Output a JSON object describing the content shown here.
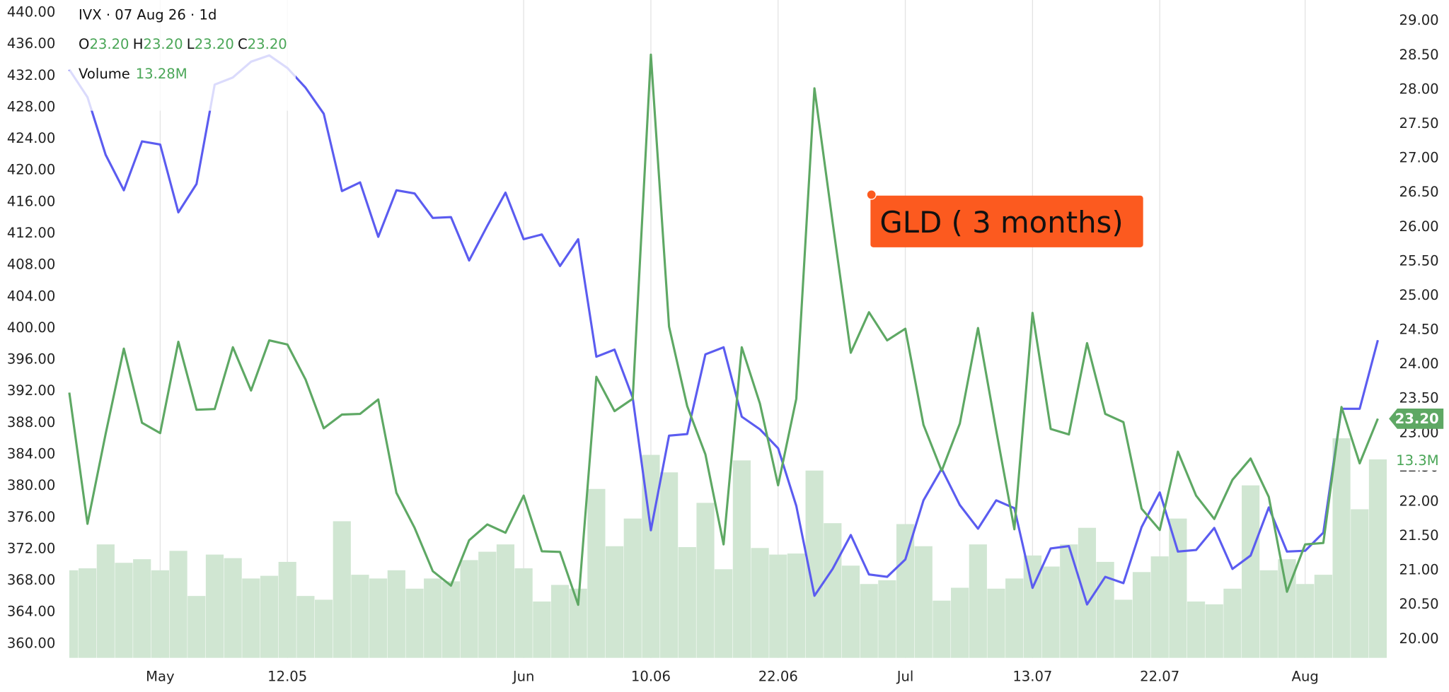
{
  "chart_data": {
    "type": "line",
    "header": {
      "title": "IVX · 07 Aug 26 · 1d",
      "ohlc": [
        [
          "O",
          "23.20"
        ],
        [
          "H",
          "23.20"
        ],
        [
          "L",
          "23.20"
        ],
        [
          "C",
          "23.20"
        ]
      ],
      "volume_label": "Volume",
      "volume_value": "13.28M"
    },
    "annotation": "GLD ( 3 months)",
    "x": [
      null,
      null,
      null,
      null,
      null,
      "May",
      null,
      null,
      null,
      null,
      null,
      null,
      "12.05",
      null,
      null,
      null,
      null,
      null,
      null,
      null,
      null,
      null,
      null,
      null,
      null,
      "Jun",
      null,
      null,
      null,
      null,
      null,
      null,
      "10.06",
      null,
      null,
      null,
      null,
      null,
      null,
      "22.06",
      null,
      null,
      null,
      null,
      null,
      null,
      "Jul",
      null,
      null,
      null,
      null,
      null,
      null,
      "13.07",
      null,
      null,
      null,
      null,
      null,
      null,
      "22.07",
      null,
      null,
      null,
      null,
      null,
      null,
      null,
      "Aug",
      null,
      null,
      null,
      null
    ],
    "series": [
      {
        "color": "#5b5cf0",
        "axis": "y",
        "values": [
          432.7,
          429.2,
          421.9,
          417.4,
          423.6,
          423.2,
          414.6,
          418.2,
          430.8,
          431.7,
          433.7,
          434.5,
          432.9,
          430.4,
          427.1,
          417.3,
          418.4,
          411.5,
          417.4,
          417.0,
          413.9,
          414.0,
          408.5,
          412.9,
          417.1,
          411.2,
          411.8,
          407.8,
          411.2,
          396.3,
          397.2,
          391.1,
          374.3,
          386.3,
          386.5,
          396.6,
          397.5,
          388.7,
          387.1,
          384.7,
          377.4,
          366.0,
          369.4,
          373.7,
          368.7,
          368.4,
          370.6,
          378.1,
          382.1,
          377.5,
          374.5,
          378.1,
          377.1,
          367.0,
          372.0,
          372.3,
          364.9,
          368.4,
          367.6,
          374.7,
          379.1,
          371.6,
          371.8,
          374.6,
          369.4,
          371.1,
          377.2,
          371.6,
          371.7,
          374.0,
          389.7,
          389.7,
          398.4
        ]
      },
      {
        "color": "#5ea864",
        "axis": "y2",
        "last_label": "23.20",
        "values": [
          23.58,
          21.67,
          22.98,
          24.22,
          23.14,
          22.99,
          24.32,
          23.33,
          23.34,
          24.24,
          23.61,
          24.34,
          24.28,
          23.77,
          23.06,
          23.26,
          23.27,
          23.48,
          22.12,
          21.61,
          20.98,
          20.77,
          21.43,
          21.66,
          21.54,
          22.08,
          21.27,
          21.26,
          20.49,
          23.81,
          23.31,
          23.49,
          28.5,
          24.54,
          23.38,
          22.68,
          21.37,
          24.24,
          23.42,
          22.23,
          23.49,
          28.01,
          26.06,
          24.16,
          24.75,
          24.34,
          24.51,
          23.11,
          22.44,
          23.13,
          24.52,
          23.03,
          21.59,
          24.74,
          23.05,
          22.97,
          24.3,
          23.27,
          23.15,
          21.89,
          21.58,
          22.72,
          22.08,
          21.74,
          22.31,
          22.62,
          22.06,
          20.68,
          21.37,
          21.39,
          23.37,
          22.55,
          23.2
        ]
      },
      {
        "type": "bar",
        "color": "#d0e6d2",
        "label_color": "#4aa657",
        "last_label": "13.3M",
        "values": [
          5.86,
          5.99,
          7.59,
          6.36,
          6.6,
          5.86,
          7.16,
          4.14,
          6.91,
          6.67,
          5.31,
          5.49,
          6.42,
          4.14,
          3.89,
          9.14,
          5.56,
          5.31,
          5.86,
          4.63,
          5.31,
          5.12,
          6.54,
          7.1,
          7.59,
          5.99,
          3.77,
          4.88,
          4.63,
          11.3,
          7.47,
          9.32,
          13.58,
          12.41,
          7.41,
          10.37,
          5.93,
          13.21,
          7.35,
          6.91,
          6.98,
          12.53,
          9.01,
          6.17,
          4.94,
          5.19,
          8.95,
          7.47,
          3.83,
          4.69,
          7.59,
          4.63,
          5.31,
          6.85,
          6.11,
          7.59,
          8.7,
          6.42,
          3.89,
          5.74,
          6.79,
          9.32,
          3.77,
          3.58,
          4.63,
          11.54,
          5.86,
          6.6,
          4.94,
          5.56,
          14.69,
          9.94,
          13.28
        ]
      }
    ],
    "ylim": [
      360,
      440
    ],
    "yticks": [
      {
        "value": 360,
        "label": "360.00"
      },
      {
        "value": 364,
        "label": "364.00"
      },
      {
        "value": 368,
        "label": "368.00"
      },
      {
        "value": 372,
        "label": "372.00"
      },
      {
        "value": 376,
        "label": "376.00"
      },
      {
        "value": 380,
        "label": "380.00"
      },
      {
        "value": 384,
        "label": "384.00"
      },
      {
        "value": 388,
        "label": "388.00"
      },
      {
        "value": 392,
        "label": "392.00"
      },
      {
        "value": 396,
        "label": "396.00"
      },
      {
        "value": 400,
        "label": "400.00"
      },
      {
        "value": 404,
        "label": "404.00"
      },
      {
        "value": 408,
        "label": "408.00"
      },
      {
        "value": 412,
        "label": "412.00"
      },
      {
        "value": 416,
        "label": "416.00"
      },
      {
        "value": 420,
        "label": "420.00"
      },
      {
        "value": 424,
        "label": "424.00"
      },
      {
        "value": 428,
        "label": "428.00"
      },
      {
        "value": 432,
        "label": "432.00"
      },
      {
        "value": 436,
        "label": "436.00"
      },
      {
        "value": 440,
        "label": "440.00"
      }
    ],
    "y2lim": [
      20,
      29
    ],
    "y2ticks": [
      {
        "value": 20,
        "label": "20.00"
      },
      {
        "value": 20.5,
        "label": "20.50"
      },
      {
        "value": 21,
        "label": "21.00"
      },
      {
        "value": 21.5,
        "label": "21.50"
      },
      {
        "value": 22,
        "label": "22.00"
      },
      {
        "value": 22.5,
        "label": "22.50"
      },
      {
        "value": 23,
        "label": "23.00"
      },
      {
        "value": 23.5,
        "label": "23.50"
      },
      {
        "value": 24,
        "label": "24.00"
      },
      {
        "value": 24.5,
        "label": "24.50"
      },
      {
        "value": 25,
        "label": "25.00"
      },
      {
        "value": 25.5,
        "label": "25.50"
      },
      {
        "value": 26,
        "label": "26.00"
      },
      {
        "value": 26.5,
        "label": "26.50"
      },
      {
        "value": 27,
        "label": "27.00"
      },
      {
        "value": 27.5,
        "label": "27.50"
      },
      {
        "value": 28,
        "label": "28.00"
      },
      {
        "value": 28.5,
        "label": "28.50"
      },
      {
        "value": 29,
        "label": "29.00"
      }
    ],
    "annotation_color": "#fc5a1f"
  }
}
